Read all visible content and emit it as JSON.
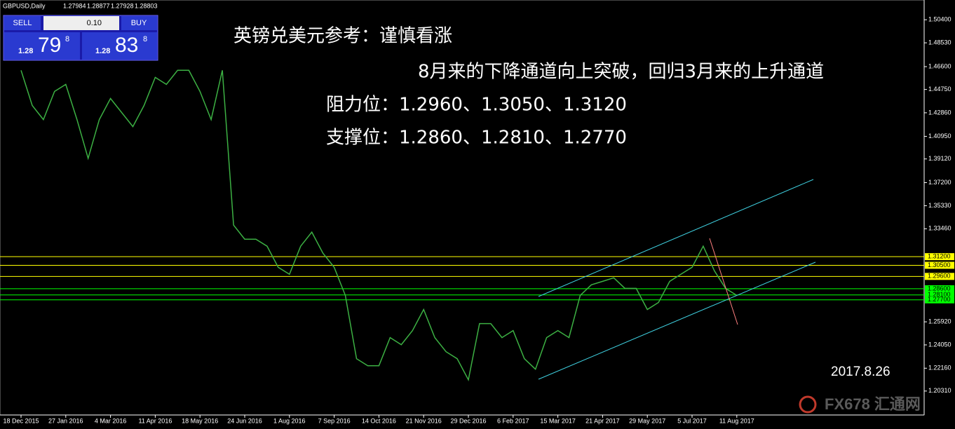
{
  "chart_data": {
    "type": "line",
    "symbol_header": "GBPUSD,Daily",
    "ohlc_header": [
      "1.27984",
      "1.28877",
      "1.27928",
      "1.28803"
    ],
    "trade_panel": {
      "sell": "SELL",
      "buy": "BUY",
      "lot": "0.10",
      "sell_big": "1.28",
      "sell_main": "79",
      "sell_sup": "8",
      "buy_big": "1.28",
      "buy_main": "83",
      "buy_sup": "8"
    },
    "annotations": [
      "英镑兑美元参考：谨慎看涨",
      "8月来的下降通道向上突破，回归3月来的上升通道",
      "阻力位：1.2960、1.3050、1.3120",
      "支撑位：1.2860、1.2810、1.2770"
    ],
    "date_note": "2017.8.26",
    "watermark": "FX678 汇通网",
    "categories": [
      "18 Dec 2015",
      null,
      null,
      null,
      "27 Jan 2016",
      null,
      null,
      null,
      "4 Mar 2016",
      null,
      null,
      null,
      "11 Apr 2016",
      null,
      null,
      null,
      "18 May 2016",
      null,
      null,
      null,
      "24 Jun 2016",
      null,
      null,
      null,
      "1 Aug 2016",
      null,
      null,
      null,
      "7 Sep 2016",
      null,
      null,
      null,
      "14 Oct 2016",
      null,
      null,
      null,
      "21 Nov 2016",
      null,
      null,
      null,
      "29 Dec 2016",
      null,
      null,
      null,
      "6 Feb 2017",
      null,
      null,
      null,
      "15 Mar 2017",
      null,
      null,
      null,
      "21 Apr 2017",
      null,
      null,
      null,
      "29 May 2017",
      null,
      null,
      null,
      "5 Jul 2017",
      null,
      null,
      null,
      "11 Aug 2017"
    ],
    "series": [
      {
        "name": "GBPUSD",
        "color": "#3cb043",
        "values": [
          1.463,
          1.4345,
          1.4231,
          1.4459,
          1.4516,
          1.4231,
          1.3917,
          1.4231,
          1.4402,
          1.4288,
          1.4174,
          1.4345,
          1.4573,
          1.4516,
          1.463,
          1.463,
          1.4459,
          1.4231,
          1.463,
          1.3376,
          1.3262,
          1.3262,
          1.3205,
          1.3034,
          1.2977,
          1.3205,
          1.3319,
          1.3148,
          1.3034,
          1.2806,
          1.2293,
          1.2236,
          1.2236,
          1.2464,
          1.2407,
          1.2521,
          1.2692,
          1.2464,
          1.235,
          1.2293,
          1.2122,
          1.2578,
          1.2578,
          1.2464,
          1.2521,
          1.2293,
          1.2208,
          1.2464,
          1.2521,
          1.2464,
          1.2806,
          1.2892,
          1.292,
          1.2949,
          1.2863,
          1.2863,
          1.2692,
          1.2749,
          1.292,
          1.2977,
          1.3034,
          1.3205,
          1.3005,
          1.2863,
          1.2806
        ]
      }
    ],
    "ylim": [
      1.1837,
      1.52
    ],
    "yticks": [
      {
        "value": 1.504,
        "label": "1.50400"
      },
      {
        "value": 1.4853,
        "label": "1.48530"
      },
      {
        "value": 1.466,
        "label": "1.46600"
      },
      {
        "value": 1.4475,
        "label": "1.44750"
      },
      {
        "value": 1.4286,
        "label": "1.42860"
      },
      {
        "value": 1.4095,
        "label": "1.40950"
      },
      {
        "value": 1.3912,
        "label": "1.39120"
      },
      {
        "value": 1.372,
        "label": "1.37200"
      },
      {
        "value": 1.3533,
        "label": "1.35330"
      },
      {
        "value": 1.3346,
        "label": "1.33460"
      },
      {
        "value": 1.2592,
        "label": "1.25920"
      },
      {
        "value": 1.2405,
        "label": "1.24050"
      },
      {
        "value": 1.2216,
        "label": "1.22160"
      },
      {
        "value": 1.2031,
        "label": "1.20310"
      }
    ],
    "levels": [
      {
        "value": 1.312,
        "label": "1.31200",
        "color": "#ffff00"
      },
      {
        "value": 1.305,
        "label": "1.30500",
        "color": "#ffff00"
      },
      {
        "value": 1.296,
        "label": "1.29600",
        "color": "#ffff00"
      },
      {
        "value": 1.286,
        "label": "1.28600",
        "color": "#00ff00"
      },
      {
        "value": 1.281,
        "label": "1.28100",
        "color": "#00ff00"
      },
      {
        "value": 1.277,
        "label": "1.27700",
        "color": "#00ff00"
      }
    ]
  }
}
